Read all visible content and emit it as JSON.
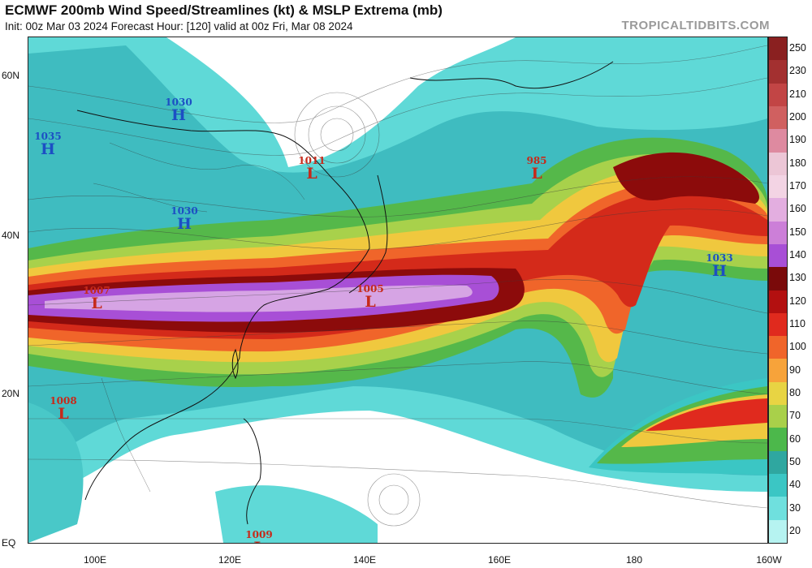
{
  "header": {
    "title": "ECMWF 200mb Wind Speed/Streamlines (kt) & MSLP Extrema (mb)",
    "subtitle": "Init: 00z Mar 03 2024   Forecast Hour: [120]   valid at 00z Fri, Mar 08 2024",
    "brand": "TROPICALTIDBITS.COM"
  },
  "axes": {
    "lat_labels": [
      "60N",
      "40N",
      "20N",
      "EQ"
    ],
    "lon_labels": [
      "100E",
      "120E",
      "140E",
      "160E",
      "180",
      "160W"
    ]
  },
  "colorbar": {
    "labels": [
      "250",
      "230",
      "210",
      "200",
      "190",
      "180",
      "170",
      "160",
      "150",
      "140",
      "130",
      "120",
      "110",
      "100",
      "90",
      "80",
      "70",
      "60",
      "50",
      "40",
      "30",
      "20"
    ],
    "colors": [
      "#8a2020",
      "#a33030",
      "#c24545",
      "#d06060",
      "#de8aa0",
      "#ecc6d6",
      "#f3d4e4",
      "#e3aee0",
      "#cc7fd8",
      "#a84fd6",
      "#7a0a0a",
      "#b31010",
      "#e02a1e",
      "#f0652a",
      "#f7a33a",
      "#e8d443",
      "#a9d04a",
      "#4cb84b",
      "#2fa7a0",
      "#3bc6c4",
      "#6fe0de",
      "#b6f3f1"
    ]
  },
  "systems": [
    {
      "type": "H",
      "pressure": "1030"
    },
    {
      "type": "H",
      "pressure": "1035"
    },
    {
      "type": "L",
      "pressure": "1011"
    },
    {
      "type": "L",
      "pressure": "985"
    },
    {
      "type": "H",
      "pressure": "1030"
    },
    {
      "type": "H",
      "pressure": "1033"
    },
    {
      "type": "L",
      "pressure": "1007"
    },
    {
      "type": "L",
      "pressure": "1005"
    },
    {
      "type": "L",
      "pressure": "1008"
    },
    {
      "type": "L",
      "pressure": "1009"
    }
  ]
}
